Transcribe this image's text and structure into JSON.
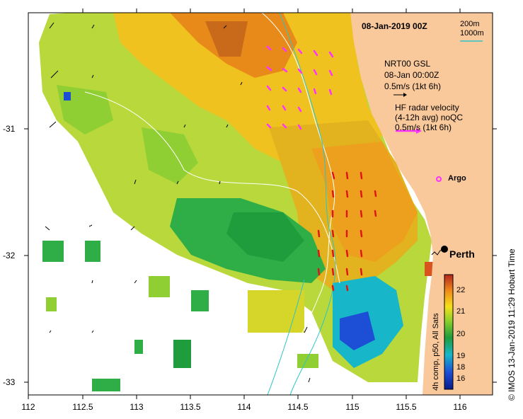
{
  "header": {
    "date": "08-Jan-2019 00Z"
  },
  "legend": {
    "depth_200": "200m",
    "depth_1000": "1000m",
    "depth_1000_color": "#2ec4c4",
    "model_title": "NRT00 GSL",
    "model_time": "08-Jan 00:00Z",
    "model_scale": "0.5m/s (1kt 6h)",
    "radar_title": "HF radar velocity",
    "radar_avg": "(4-12h avg) noQC",
    "radar_scale": "0.5m/s (1kt 6h)",
    "radar_color": "#ff33ff",
    "argo_label": "Argo",
    "city_label": "Perth"
  },
  "axes": {
    "x_ticks": [
      "112",
      "112.5",
      "113",
      "113.5",
      "114",
      "114.5",
      "115",
      "115.5",
      "116"
    ],
    "y_ticks": [
      "-31",
      "-32",
      "-33"
    ]
  },
  "colorbar": {
    "ticks": [
      "22",
      "21",
      "20",
      "19",
      "18",
      "16"
    ],
    "title": "4h comp, p50, All Sats"
  },
  "footer": {
    "credit": "© IMOS 13-Jan-2019 11:29 Hobart Time"
  },
  "colors": {
    "land": "#f9c89b",
    "warm": "#e88a1a",
    "mid": "#f5e019",
    "cool": "#1f9c3c",
    "cold": "#1c4fd6"
  }
}
